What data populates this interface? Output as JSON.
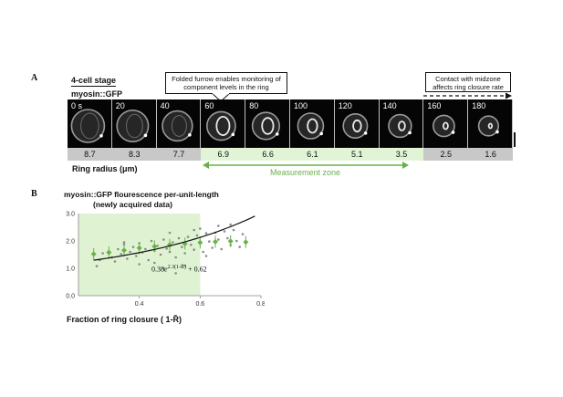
{
  "panel_a": {
    "letter": "A",
    "stage_label": "4-cell stage",
    "strain_label": "myosin::GFP",
    "callout_left": [
      "Folded furrow enables monitoring of",
      "component levels in the ring"
    ],
    "callout_right": [
      "Contact with midzone",
      "affects ring closure rate"
    ],
    "frames": [
      {
        "time": "0 s",
        "radius": "8.7",
        "zone": "gray"
      },
      {
        "time": "20",
        "radius": "8.3",
        "zone": "gray"
      },
      {
        "time": "40",
        "radius": "7.7",
        "zone": "gray"
      },
      {
        "time": "60",
        "radius": "6.9",
        "zone": "green"
      },
      {
        "time": "80",
        "radius": "6.6",
        "zone": "green"
      },
      {
        "time": "100",
        "radius": "6.1",
        "zone": "green"
      },
      {
        "time": "120",
        "radius": "5.1",
        "zone": "green"
      },
      {
        "time": "140",
        "radius": "3.5",
        "zone": "green"
      },
      {
        "time": "160",
        "radius": "2.5",
        "zone": "gray"
      },
      {
        "time": "180",
        "radius": "1.6",
        "zone": "gray"
      }
    ],
    "ring_radius_label": "Ring radius (μm)",
    "measurement_zone_label": "Measurement zone",
    "green_color": "#6ab04c"
  },
  "panel_b": {
    "letter": "B",
    "title_line1": "myosin::GFP flourescence per-unit-length",
    "title_line2": "(newly acquired data)",
    "xlabel": "Fraction of ring closure ( 1-R̄)",
    "fit_label": "0.38e^{2.3(1-R̄)} + 0.62",
    "fit_main": "0.38",
    "fit_e": "e",
    "fit_exp": "2.3(1-R̄)",
    "fit_tail": "+ 0.62"
  },
  "chart_data": {
    "type": "scatter",
    "xlabel": "Fraction of ring closure ( 1-R̄)",
    "ylabel": "",
    "x_ticks": [
      "0.4",
      "0.6",
      "0.8"
    ],
    "y_ticks": [
      "0.0",
      "1.0",
      "2.0",
      "3.0"
    ],
    "xlim": [
      0.2,
      0.8
    ],
    "ylim": [
      0.0,
      3.0
    ],
    "shaded_region_x": [
      0.2,
      0.6
    ],
    "fit": {
      "a": 0.38,
      "b": 2.3,
      "c": 0.62
    },
    "green_band": {
      "x": [
        0.25,
        0.3,
        0.35,
        0.4,
        0.45,
        0.5,
        0.55,
        0.6,
        0.65,
        0.7,
        0.75
      ],
      "y": [
        1.52,
        1.58,
        1.66,
        1.74,
        1.8,
        1.86,
        1.9,
        1.94,
        1.97,
        1.99,
        1.96
      ]
    },
    "points": [
      [
        0.26,
        1.08
      ],
      [
        0.27,
        1.3
      ],
      [
        0.28,
        1.55
      ],
      [
        0.3,
        1.62
      ],
      [
        0.31,
        1.4
      ],
      [
        0.32,
        1.25
      ],
      [
        0.33,
        1.7
      ],
      [
        0.34,
        1.52
      ],
      [
        0.35,
        1.88
      ],
      [
        0.36,
        1.35
      ],
      [
        0.37,
        1.6
      ],
      [
        0.38,
        1.78
      ],
      [
        0.39,
        1.45
      ],
      [
        0.4,
        1.92
      ],
      [
        0.41,
        1.58
      ],
      [
        0.42,
        1.7
      ],
      [
        0.43,
        1.3
      ],
      [
        0.44,
        2.0
      ],
      [
        0.45,
        1.65
      ],
      [
        0.46,
        1.82
      ],
      [
        0.47,
        1.5
      ],
      [
        0.48,
        2.05
      ],
      [
        0.49,
        1.72
      ],
      [
        0.5,
        1.6
      ],
      [
        0.51,
        1.95
      ],
      [
        0.52,
        1.4
      ],
      [
        0.53,
        2.1
      ],
      [
        0.54,
        1.78
      ],
      [
        0.55,
        1.55
      ],
      [
        0.56,
        2.15
      ],
      [
        0.57,
        1.86
      ],
      [
        0.58,
        1.68
      ],
      [
        0.59,
        2.2
      ],
      [
        0.6,
        1.92
      ],
      [
        0.61,
        1.6
      ],
      [
        0.62,
        2.28
      ],
      [
        0.63,
        1.98
      ],
      [
        0.64,
        1.75
      ],
      [
        0.65,
        2.3
      ],
      [
        0.66,
        2.05
      ],
      [
        0.67,
        1.7
      ],
      [
        0.68,
        2.35
      ],
      [
        0.69,
        2.1
      ],
      [
        0.7,
        1.85
      ],
      [
        0.71,
        2.4
      ],
      [
        0.72,
        2.0
      ],
      [
        0.73,
        1.78
      ],
      [
        0.74,
        2.25
      ],
      [
        0.45,
        1.2
      ],
      [
        0.5,
        2.3
      ],
      [
        0.55,
        1.1
      ],
      [
        0.6,
        2.45
      ],
      [
        0.52,
        0.82
      ],
      [
        0.48,
        1.0
      ],
      [
        0.62,
        1.45
      ],
      [
        0.58,
        2.4
      ],
      [
        0.66,
        2.55
      ],
      [
        0.7,
        2.6
      ],
      [
        0.4,
        1.15
      ],
      [
        0.35,
        1.95
      ]
    ]
  }
}
